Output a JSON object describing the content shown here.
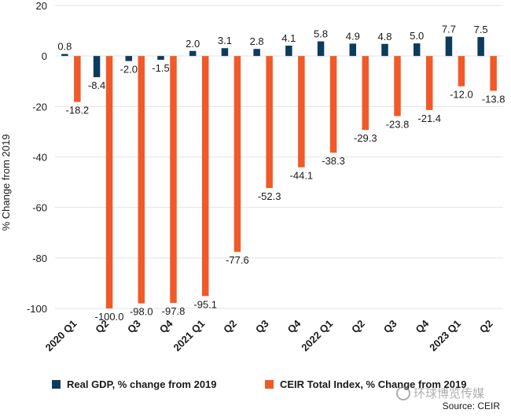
{
  "chart_data": {
    "type": "bar",
    "categories": [
      "2020 Q1",
      "Q2",
      "Q3",
      "Q4",
      "2021 Q1",
      "Q2",
      "Q3",
      "Q4",
      "2022 Q1",
      "Q2",
      "Q3",
      "Q4",
      "2023 Q1",
      "Q2"
    ],
    "series": [
      {
        "name": "Real GDP, % change from 2019",
        "color": "#0d3b5e",
        "values": [
          0.8,
          -8.4,
          -2.0,
          -1.5,
          2.0,
          3.1,
          2.8,
          4.1,
          5.8,
          4.9,
          4.8,
          5.0,
          7.7,
          7.5
        ]
      },
      {
        "name": "CEIR Total Index, % Change from 2019",
        "color": "#f05a28",
        "values": [
          -18.2,
          -100.0,
          -98.0,
          -97.8,
          -95.1,
          -77.6,
          -52.3,
          -44.1,
          -38.3,
          -29.3,
          -23.8,
          -21.4,
          -12.0,
          -13.8
        ]
      }
    ],
    "ylabel": "% Change from 2019",
    "ylim": [
      -100,
      20
    ],
    "yticks": [
      20,
      0,
      -20,
      -40,
      -60,
      -80,
      -100
    ],
    "grid": true,
    "legend": "bottom"
  },
  "source": "Source: CEIR",
  "watermark": "环球博览传媒"
}
